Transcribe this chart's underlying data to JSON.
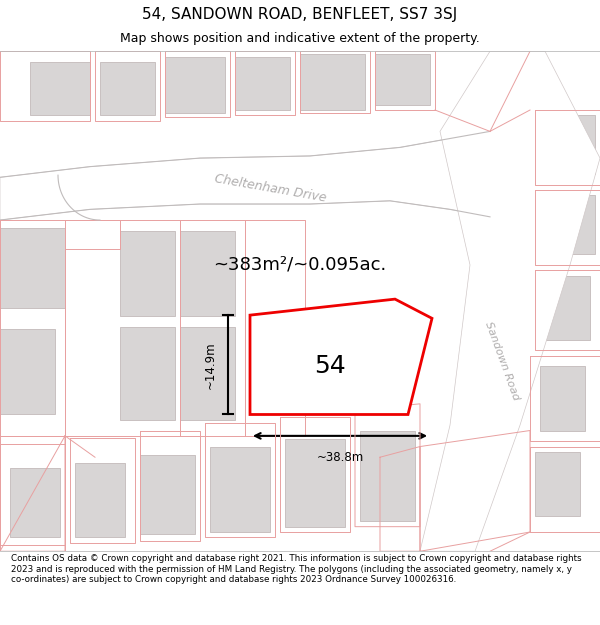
{
  "title": "54, SANDOWN ROAD, BENFLEET, SS7 3SJ",
  "subtitle": "Map shows position and indicative extent of the property.",
  "footer": "Contains OS data © Crown copyright and database right 2021. This information is subject to Crown copyright and database rights 2023 and is reproduced with the permission of HM Land Registry. The polygons (including the associated geometry, namely x, y co-ordinates) are subject to Crown copyright and database rights 2023 Ordnance Survey 100026316.",
  "map_bg": "#f7f5f5",
  "road_fill": "#ffffff",
  "road_outline": "#d0c8c8",
  "building_fill": "#d8d5d5",
  "building_stroke": "#c8c0c0",
  "boundary_color": "#e8a0a0",
  "highlight_color": "#ee0000",
  "highlight_fill": "#ffffff",
  "dim_color": "#111111",
  "road_label_color": "#aaaaaa",
  "area_label": "~383m²/~0.095ac.",
  "number_label": "54",
  "dim_width": "~38.8m",
  "dim_height": "~14.9m",
  "cheltenham_drive_label": "Cheltenham Drive",
  "sandown_road_label": "Sandown Road",
  "figsize": [
    6.0,
    6.25
  ],
  "dpi": 100,
  "title_fontsize": 11,
  "subtitle_fontsize": 9,
  "footer_fontsize": 6.3
}
